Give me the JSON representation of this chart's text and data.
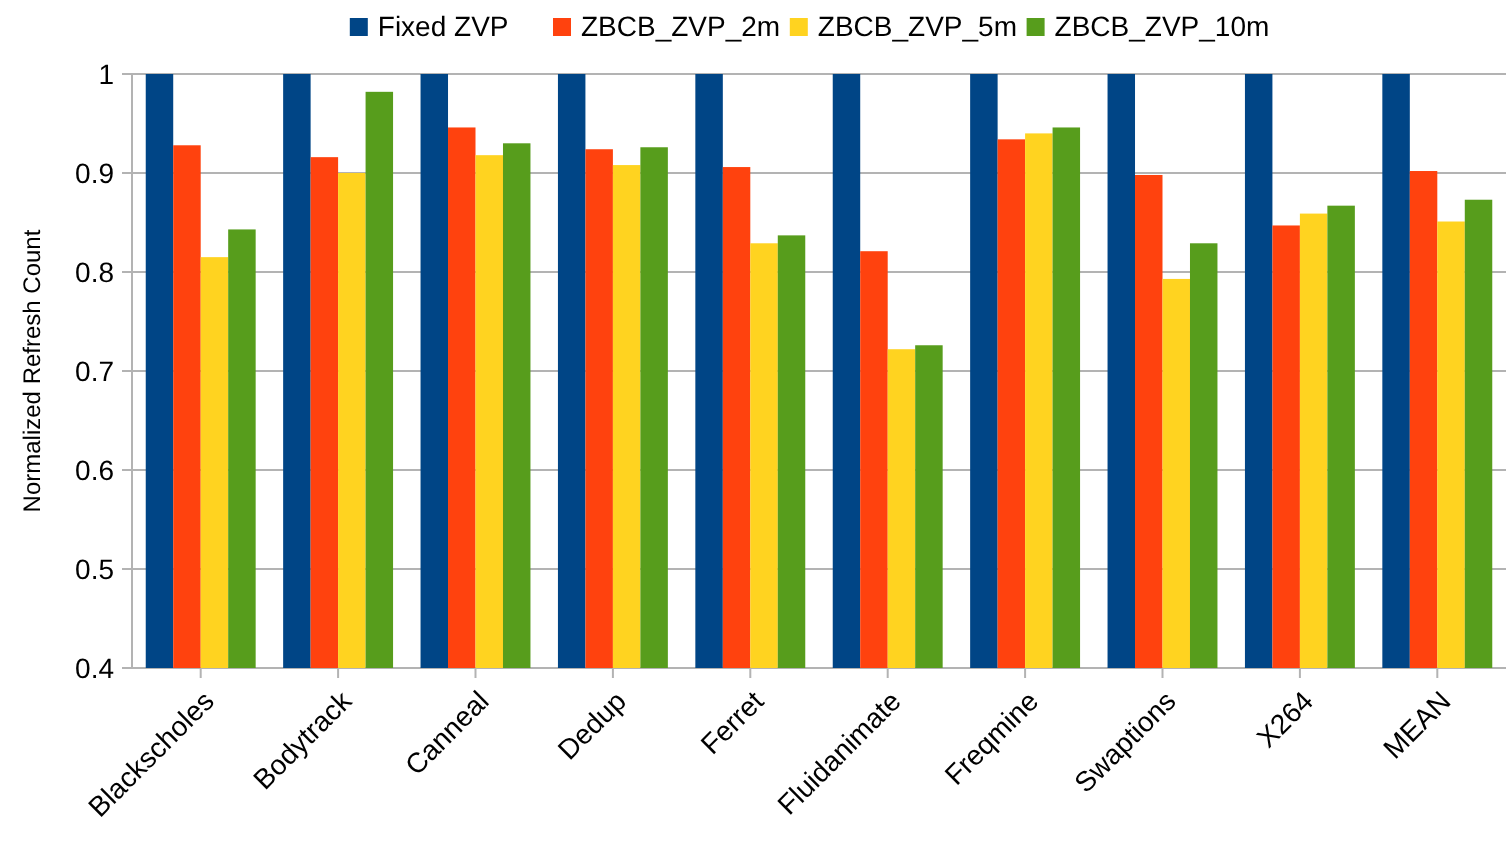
{
  "chart_data": {
    "type": "bar",
    "ylabel": "Normalized Refresh Count",
    "categories": [
      "Blackscholes",
      "Bodytrack",
      "Canneal",
      "Dedup",
      "Ferret",
      "Fluidanimate",
      "Freqmine",
      "Swaptions",
      "X264",
      "MEAN"
    ],
    "series": [
      {
        "name": "Fixed ZVP",
        "color": "#004586",
        "values": [
          1,
          1,
          1,
          1,
          1,
          1,
          1,
          1,
          1,
          1
        ]
      },
      {
        "name": "ZBCB_ZVP_2m",
        "color": "#ff420e",
        "values": [
          0.928,
          0.916,
          0.946,
          0.924,
          0.906,
          0.821,
          0.934,
          0.898,
          0.847,
          0.902
        ]
      },
      {
        "name": "ZBCB_ZVP_5m",
        "color": "#ffd320",
        "values": [
          0.815,
          0.9,
          0.918,
          0.908,
          0.829,
          0.722,
          0.94,
          0.793,
          0.859,
          0.851
        ]
      },
      {
        "name": "ZBCB_ZVP_10m",
        "color": "#579d1c",
        "values": [
          0.843,
          0.982,
          0.93,
          0.926,
          0.837,
          0.726,
          0.946,
          0.829,
          0.867,
          0.873
        ]
      }
    ],
    "ylim": [
      0.4,
      1
    ],
    "yticks": [
      0.4,
      0.5,
      0.6,
      0.7,
      0.8,
      0.9,
      1
    ],
    "grid": "y",
    "legend": "top"
  }
}
